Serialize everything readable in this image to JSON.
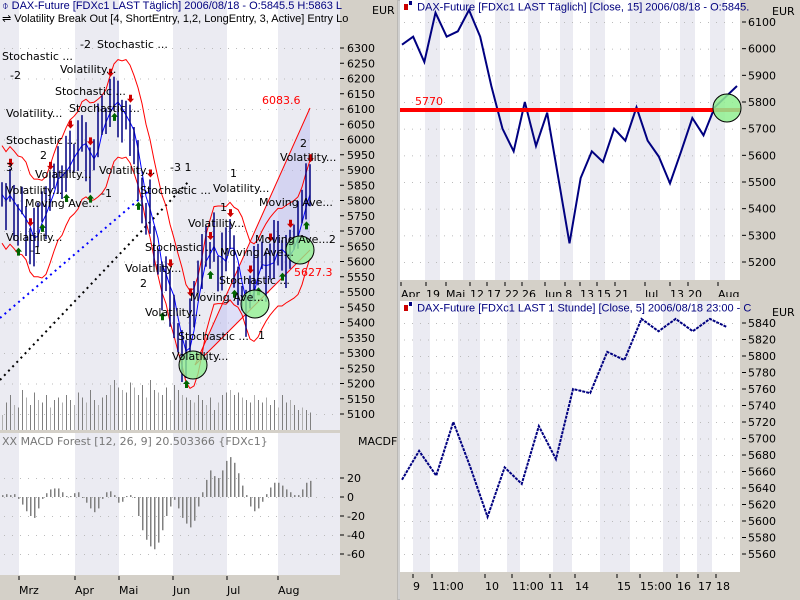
{
  "left_chart": {
    "title": "DAX-Future [FDXc1 LAST Täglich] 2006/08/18 - O:5845.5 H:5863 L",
    "indicator_line": "Volatility Break Out [4, ShortEntry, 1,2, LongEntry, 3, Active] Entry Lo",
    "currency": "EUR",
    "y_ticks": [
      6300,
      6250,
      6200,
      6150,
      6100,
      6050,
      6000,
      5950,
      5900,
      5850,
      5800,
      5750,
      5700,
      5650,
      5600,
      5550,
      5500,
      5450,
      5400,
      5350,
      5300,
      5250,
      5200,
      5150,
      5100
    ],
    "x_labels": [
      "Mrz",
      "Apr",
      "Mai",
      "Jun",
      "Jul",
      "Aug"
    ],
    "price_labels": {
      "upper": "6083.6",
      "lower": "5627.3"
    },
    "closes": [
      5820,
      5780,
      5850,
      5760,
      5720,
      5800,
      5700,
      5650,
      5680,
      5720,
      5780,
      5760,
      5830,
      5880,
      5900,
      5860,
      5920,
      5960,
      5940,
      5980,
      6020,
      5960,
      5900,
      5950,
      6030,
      6080,
      6060,
      6120,
      6150,
      6100,
      6060,
      6080,
      6030,
      5980,
      5900,
      5800,
      5740,
      5780,
      5650,
      5600,
      5520,
      5560,
      5480,
      5420,
      5350,
      5290,
      5280,
      5380,
      5460,
      5550,
      5600,
      5650,
      5620,
      5680,
      5560,
      5600,
      5640,
      5690,
      5600,
      5520,
      5480,
      5430,
      5500,
      5560,
      5590,
      5620,
      5550,
      5600,
      5640,
      5660,
      5620,
      5600,
      5640,
      5680,
      5720,
      5780,
      5830,
      5850
    ],
    "volume": [
      30,
      55,
      70,
      50,
      45,
      80,
      65,
      50,
      75,
      60,
      55,
      70,
      45,
      60,
      65,
      55,
      70,
      60,
      50,
      75,
      65,
      55,
      80,
      60,
      50,
      65,
      70,
      90,
      100,
      85,
      80,
      75,
      95,
      85,
      70,
      90,
      65,
      100,
      80,
      75,
      70,
      85,
      60,
      90,
      80,
      70,
      65,
      60,
      55,
      70,
      60,
      50,
      65,
      40,
      55,
      70,
      75,
      80,
      70,
      75,
      65,
      60,
      55,
      70,
      60,
      55,
      65,
      50,
      60,
      45,
      70,
      55,
      60,
      50,
      40,
      45,
      40,
      35
    ],
    "annotations": [
      "-2",
      "Volatility...",
      "Stochastic ...",
      "Stochastic ...",
      "-2",
      "Volatility...",
      "Stochastic ...",
      "Stochastic ...",
      "Volatility...",
      "Moving Ave...",
      "-1",
      "Volatility...",
      "Volatility...",
      "2",
      "Stochastic ...",
      "3",
      "Volatility...",
      "-1",
      "Stochastic ...",
      "Volatility...",
      "Moving Ave...",
      "Stochastic ...",
      "Volatility...",
      "1",
      "Volatility...",
      "2",
      "Volatility...",
      "Moving Ave...",
      "Stochastic ...",
      "Volatility...",
      "1",
      "Moving Ave...",
      "2",
      "Stochastic ...",
      "1",
      "Volatility...",
      "-3 1",
      "Moving Ave...2"
    ],
    "accent_color": "#ff0000"
  },
  "macd": {
    "title": "XX MACD Forest [12, 26, 9] 20.503366 {FDXc1}",
    "axis_label": "MACDF",
    "y_ticks": [
      20,
      0,
      -20,
      -40,
      -60
    ],
    "values": [
      2,
      3,
      2,
      3,
      -2,
      -8,
      -15,
      -20,
      -22,
      -12,
      -2,
      4,
      8,
      9,
      9,
      5,
      1,
      1,
      4,
      5,
      0,
      -6,
      -12,
      -16,
      -12,
      -2,
      5,
      6,
      2,
      -6,
      -5,
      1,
      2,
      -1,
      -20,
      -35,
      -45,
      -52,
      -55,
      -48,
      -35,
      -20,
      -10,
      -3,
      -12,
      -22,
      -28,
      -32,
      -25,
      -10,
      5,
      18,
      28,
      22,
      20,
      28,
      38,
      42,
      36,
      25,
      12,
      2,
      -10,
      -15,
      -12,
      -5,
      3,
      10,
      15,
      15,
      12,
      8,
      5,
      2,
      2,
      8,
      15,
      17
    ]
  },
  "daily_chart": {
    "title": "DAX-Future [FDXc1 LAST Täglich] [Close, 15] 2006/08/18 - O:5845.",
    "currency": "EUR",
    "y_ticks": [
      6100,
      6000,
      5900,
      5800,
      5700,
      5600,
      5500,
      5400,
      5300,
      5200
    ],
    "x_labels": [
      "Apr",
      "19",
      "Mai",
      "12",
      "17",
      "22",
      "26",
      "Jun",
      "8",
      "13",
      "15",
      "21",
      "Jul",
      "13",
      "20",
      "Aug"
    ],
    "line_level": "5770",
    "values": [
      6015,
      6045,
      5950,
      6135,
      6045,
      6065,
      6145,
      6045,
      5860,
      5700,
      5615,
      5800,
      5635,
      5760,
      5515,
      5270,
      5515,
      5615,
      5575,
      5700,
      5655,
      5780,
      5655,
      5595,
      5495,
      5615,
      5740,
      5675,
      5780,
      5820,
      5860
    ],
    "line_color": "#000080"
  },
  "hourly_chart": {
    "title": "DAX-Future [FDXc1 LAST 1 Stunde] [Close, 5] 2006/08/18 23:00 - C",
    "currency": "EUR",
    "y_ticks": [
      5840,
      5820,
      5800,
      5780,
      5760,
      5740,
      5720,
      5700,
      5680,
      5660,
      5640,
      5620,
      5600,
      5580,
      5560
    ],
    "x_labels": [
      "9",
      "11:00",
      "10",
      "11:00",
      "11",
      "14",
      "15",
      "15:00",
      "16",
      "17",
      "18"
    ],
    "values": [
      5650,
      5685,
      5655,
      5720,
      5665,
      5605,
      5665,
      5645,
      5715,
      5675,
      5760,
      5755,
      5805,
      5795,
      5845,
      5830,
      5845,
      5830,
      5845,
      5835
    ]
  }
}
